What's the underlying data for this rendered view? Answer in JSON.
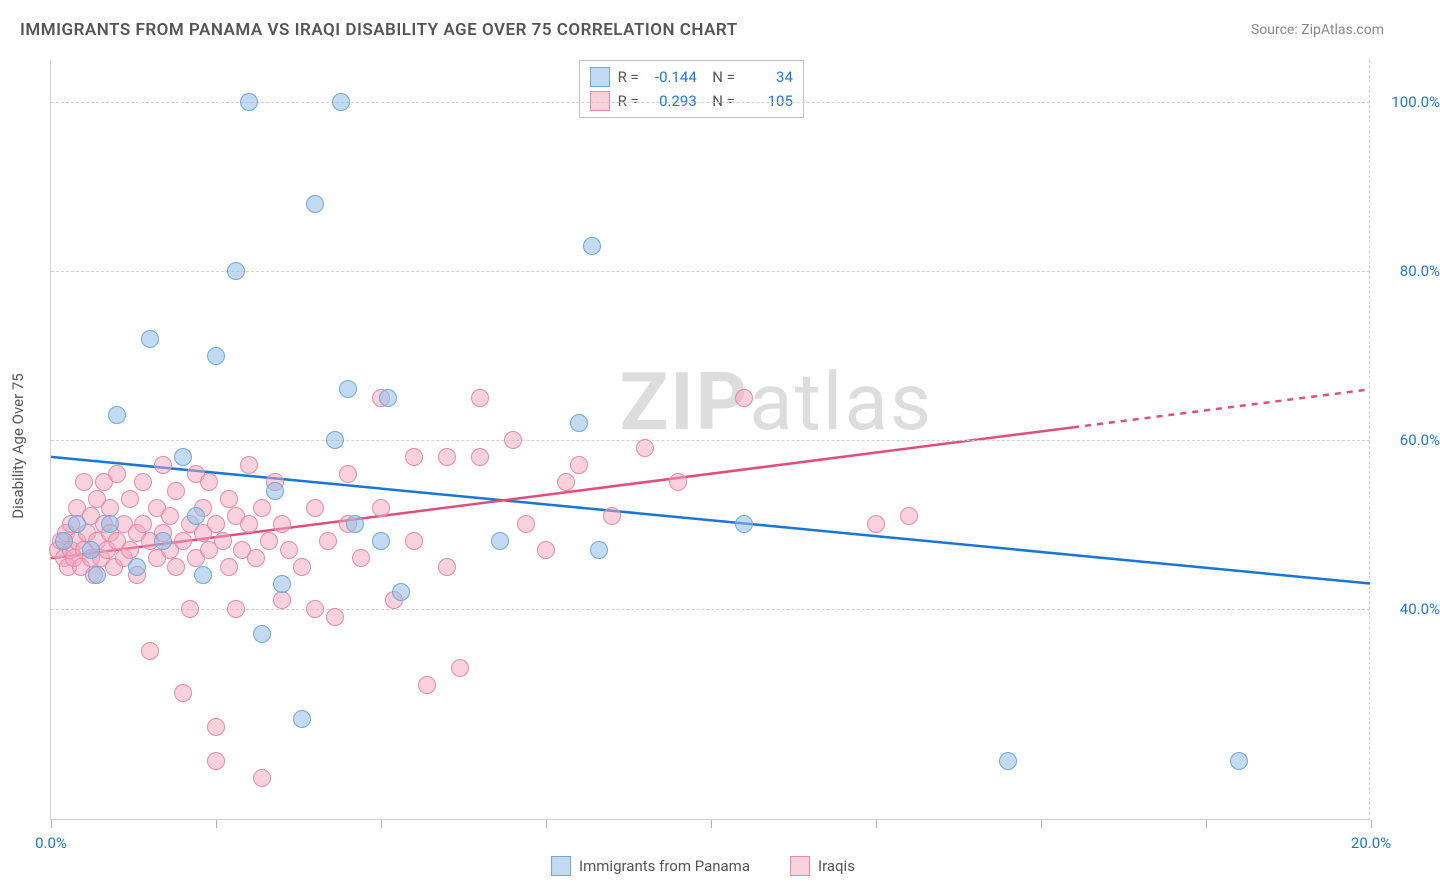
{
  "chart": {
    "title": "IMMIGRANTS FROM PANAMA VS IRAQI DISABILITY AGE OVER 75 CORRELATION CHART",
    "source_label": "Source: ZipAtlas.com",
    "y_axis_label": "Disability Age Over 75",
    "watermark_bold": "ZIP",
    "watermark_rest": "atlas",
    "background_color": "#ffffff",
    "grid_color": "#d0d0d0",
    "text_color": "#555555",
    "tick_label_color": "#1f77d4",
    "title_fontsize": 17,
    "label_fontsize": 15,
    "x_axis": {
      "min": 0.0,
      "max": 20.0,
      "ticks": [
        0.0,
        2.5,
        5.0,
        7.5,
        10.0,
        12.5,
        15.0,
        17.5,
        20.0
      ],
      "labels": {
        "0": "0.0%",
        "20": "20.0%"
      }
    },
    "y_axis": {
      "min": 15.0,
      "max": 105.0,
      "gridlines": [
        40.0,
        60.0,
        80.0,
        100.0
      ],
      "labels": {
        "40": "40.0%",
        "60": "60.0%",
        "80": "80.0%",
        "100": "100.0%"
      }
    },
    "series": [
      {
        "name": "Immigrants from Panama",
        "fill_color": "rgba(144,190,232,0.55)",
        "stroke_color": "#6fa8dc",
        "line_color": "#1976d2",
        "line_width": 2.5,
        "marker_radius": 9,
        "R": "-0.144",
        "N": "34",
        "trend": {
          "x1": 0.0,
          "y1": 58.0,
          "x2": 20.0,
          "y2": 43.0,
          "dash_from_x": 20.0
        },
        "points": [
          [
            0.2,
            48
          ],
          [
            0.4,
            50
          ],
          [
            0.6,
            47
          ],
          [
            0.7,
            44
          ],
          [
            0.9,
            50
          ],
          [
            1.0,
            63
          ],
          [
            1.3,
            45
          ],
          [
            1.5,
            72
          ],
          [
            1.7,
            48
          ],
          [
            2.0,
            58
          ],
          [
            2.2,
            51
          ],
          [
            2.3,
            44
          ],
          [
            2.5,
            70
          ],
          [
            2.8,
            80
          ],
          [
            3.0,
            100
          ],
          [
            3.2,
            37
          ],
          [
            3.4,
            54
          ],
          [
            3.5,
            43
          ],
          [
            3.8,
            27
          ],
          [
            4.0,
            88
          ],
          [
            4.3,
            60
          ],
          [
            4.4,
            100
          ],
          [
            4.5,
            66
          ],
          [
            4.6,
            50
          ],
          [
            5.0,
            48
          ],
          [
            5.1,
            65
          ],
          [
            5.3,
            42
          ],
          [
            6.8,
            48
          ],
          [
            8.0,
            62
          ],
          [
            8.2,
            83
          ],
          [
            8.3,
            47
          ],
          [
            14.5,
            22
          ],
          [
            18.0,
            22
          ],
          [
            10.5,
            50
          ]
        ]
      },
      {
        "name": "Iraqis",
        "fill_color": "rgba(244,166,189,0.5)",
        "stroke_color": "#e88aa5",
        "line_color": "#e04f7a",
        "line_width": 2.5,
        "marker_radius": 9,
        "R": "0.293",
        "N": "105",
        "trend": {
          "x1": 0.0,
          "y1": 46.0,
          "x2": 20.0,
          "y2": 66.0,
          "dash_from_x": 15.5
        },
        "points": [
          [
            0.1,
            47
          ],
          [
            0.15,
            48
          ],
          [
            0.2,
            46
          ],
          [
            0.22,
            49
          ],
          [
            0.25,
            45
          ],
          [
            0.3,
            47
          ],
          [
            0.3,
            50
          ],
          [
            0.35,
            46
          ],
          [
            0.4,
            48
          ],
          [
            0.4,
            52
          ],
          [
            0.45,
            45
          ],
          [
            0.5,
            47
          ],
          [
            0.5,
            55
          ],
          [
            0.55,
            49
          ],
          [
            0.6,
            46
          ],
          [
            0.6,
            51
          ],
          [
            0.65,
            44
          ],
          [
            0.7,
            48
          ],
          [
            0.7,
            53
          ],
          [
            0.75,
            46
          ],
          [
            0.8,
            50
          ],
          [
            0.8,
            55
          ],
          [
            0.85,
            47
          ],
          [
            0.9,
            49
          ],
          [
            0.9,
            52
          ],
          [
            0.95,
            45
          ],
          [
            1.0,
            48
          ],
          [
            1.0,
            56
          ],
          [
            1.1,
            46
          ],
          [
            1.1,
            50
          ],
          [
            1.2,
            53
          ],
          [
            1.2,
            47
          ],
          [
            1.3,
            49
          ],
          [
            1.3,
            44
          ],
          [
            1.4,
            55
          ],
          [
            1.4,
            50
          ],
          [
            1.5,
            48
          ],
          [
            1.5,
            35
          ],
          [
            1.6,
            52
          ],
          [
            1.6,
            46
          ],
          [
            1.7,
            49
          ],
          [
            1.7,
            57
          ],
          [
            1.8,
            47
          ],
          [
            1.8,
            51
          ],
          [
            1.9,
            45
          ],
          [
            1.9,
            54
          ],
          [
            2.0,
            30
          ],
          [
            2.0,
            48
          ],
          [
            2.1,
            50
          ],
          [
            2.1,
            40
          ],
          [
            2.2,
            46
          ],
          [
            2.2,
            56
          ],
          [
            2.3,
            49
          ],
          [
            2.3,
            52
          ],
          [
            2.4,
            47
          ],
          [
            2.4,
            55
          ],
          [
            2.5,
            50
          ],
          [
            2.5,
            26
          ],
          [
            2.5,
            22
          ],
          [
            2.6,
            48
          ],
          [
            2.7,
            53
          ],
          [
            2.7,
            45
          ],
          [
            2.8,
            51
          ],
          [
            2.8,
            40
          ],
          [
            2.9,
            47
          ],
          [
            3.0,
            50
          ],
          [
            3.0,
            57
          ],
          [
            3.1,
            46
          ],
          [
            3.2,
            52
          ],
          [
            3.2,
            20
          ],
          [
            3.3,
            48
          ],
          [
            3.4,
            55
          ],
          [
            3.5,
            41
          ],
          [
            3.5,
            50
          ],
          [
            3.6,
            47
          ],
          [
            3.8,
            45
          ],
          [
            4.0,
            52
          ],
          [
            4.0,
            40
          ],
          [
            4.2,
            48
          ],
          [
            4.3,
            39
          ],
          [
            4.5,
            56
          ],
          [
            4.5,
            50
          ],
          [
            4.7,
            46
          ],
          [
            5.0,
            65
          ],
          [
            5.0,
            52
          ],
          [
            5.2,
            41
          ],
          [
            5.5,
            58
          ],
          [
            5.5,
            48
          ],
          [
            5.7,
            31
          ],
          [
            6.0,
            58
          ],
          [
            6.0,
            45
          ],
          [
            6.2,
            33
          ],
          [
            6.5,
            65
          ],
          [
            6.5,
            58
          ],
          [
            7.0,
            60
          ],
          [
            7.2,
            50
          ],
          [
            7.5,
            47
          ],
          [
            7.8,
            55
          ],
          [
            8.0,
            57
          ],
          [
            8.5,
            51
          ],
          [
            9.0,
            59
          ],
          [
            9.5,
            55
          ],
          [
            10.5,
            65
          ],
          [
            12.5,
            50
          ],
          [
            13.0,
            51
          ]
        ]
      }
    ],
    "bottom_legend": [
      {
        "label": "Immigrants from Panama",
        "fill": "rgba(144,190,232,0.55)",
        "stroke": "#6fa8dc"
      },
      {
        "label": "Iraqis",
        "fill": "rgba(244,166,189,0.5)",
        "stroke": "#e88aa5"
      }
    ]
  }
}
